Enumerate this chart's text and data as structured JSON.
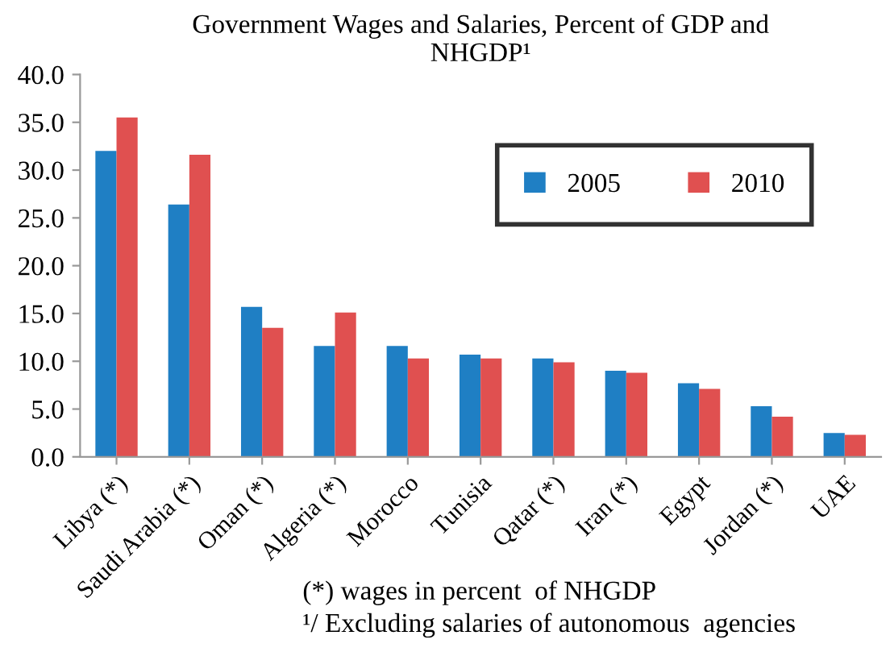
{
  "chart_data": {
    "type": "bar",
    "title": "Government Wages and Salaries, Percent of GDP and\nNHGDP¹",
    "categories": [
      "Libya (*)",
      "Saudi Arabia (*)",
      "Oman (*)",
      "Algeria (*)",
      "Morocco",
      "Tunisia",
      "Qatar (*)",
      "Iran (*)",
      "Egypt",
      "Jordan (*)",
      "UAE"
    ],
    "series": [
      {
        "name": "2005",
        "color": "#1f7fc4",
        "values": [
          32.0,
          26.4,
          15.7,
          11.6,
          11.6,
          10.7,
          10.3,
          9.0,
          7.7,
          5.3,
          2.5
        ]
      },
      {
        "name": "2010",
        "color": "#e05050",
        "values": [
          35.5,
          31.6,
          13.5,
          15.1,
          10.3,
          10.3,
          9.9,
          8.8,
          7.1,
          4.2,
          2.3
        ]
      }
    ],
    "ylim": [
      0,
      40
    ],
    "yticks": [
      {
        "value": 0,
        "label": "0.0"
      },
      {
        "value": 5,
        "label": "5.0"
      },
      {
        "value": 10,
        "label": "10.0"
      },
      {
        "value": 15,
        "label": "15.0"
      },
      {
        "value": 20,
        "label": "20.0"
      },
      {
        "value": 25,
        "label": "25.0"
      },
      {
        "value": 30,
        "label": "30.0"
      },
      {
        "value": 35,
        "label": "35.0"
      },
      {
        "value": 40,
        "label": "40.0"
      }
    ],
    "grid": false,
    "legend": "top right",
    "annotations": [
      "(*) wages in percent  of NHGDP",
      "¹/ Excluding salaries of autonomous  agencies"
    ]
  }
}
